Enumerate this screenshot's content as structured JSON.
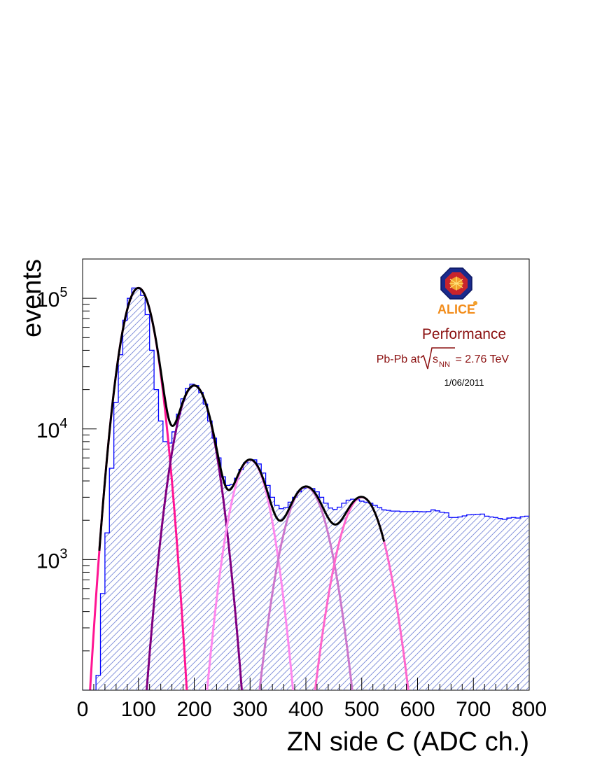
{
  "chart_data": {
    "type": "line",
    "title": "",
    "xlabel": "ZN side C (ADC ch.)",
    "ylabel": "events",
    "xlim": [
      0,
      800
    ],
    "ylim": [
      100,
      200000
    ],
    "yscale": "log",
    "grid": false,
    "x_ticks": [
      "0",
      "100",
      "200",
      "300",
      "400",
      "500",
      "600",
      "700",
      "800"
    ],
    "y_ticks": [
      {
        "base": "10",
        "exp": "3",
        "value": 1000
      },
      {
        "base": "10",
        "exp": "4",
        "value": 10000
      },
      {
        "base": "10",
        "exp": "5",
        "value": 100000
      }
    ],
    "annotations": {
      "logo": "ALICE",
      "performance": "Performance",
      "collision_prefix": "Pb-Pb at",
      "collision_s": "s",
      "collision_sub": "NN",
      "collision_suffix": " = 2.76 TeV",
      "date": "1/06/2011"
    },
    "histogram": {
      "name": "",
      "color": "#0000ff",
      "fill_hatch_color": "#7a88d8",
      "bin_width": 8,
      "x": [
        0,
        8,
        16,
        24,
        32,
        40,
        48,
        56,
        64,
        72,
        80,
        88,
        96,
        104,
        112,
        120,
        128,
        136,
        144,
        152,
        160,
        168,
        176,
        184,
        192,
        200,
        208,
        216,
        224,
        232,
        240,
        248,
        256,
        264,
        272,
        280,
        288,
        296,
        304,
        312,
        320,
        328,
        336,
        344,
        352,
        360,
        368,
        376,
        384,
        392,
        400,
        408,
        416,
        424,
        432,
        440,
        448,
        456,
        464,
        472,
        480,
        488,
        496,
        504,
        512,
        520,
        528,
        536,
        544,
        552,
        560,
        568,
        576,
        584,
        592,
        600,
        608,
        616,
        624,
        632,
        640,
        648,
        656,
        664,
        672,
        680,
        688,
        696,
        704,
        712,
        720,
        728,
        736,
        744,
        752,
        760,
        768,
        776,
        784,
        792
      ],
      "y": [
        100,
        100,
        100,
        130,
        550,
        1600,
        5000,
        16000,
        37000,
        68000,
        100000,
        120000,
        120000,
        105000,
        75000,
        40000,
        20000,
        11500,
        8000,
        7800,
        9500,
        13000,
        17000,
        20500,
        22000,
        21500,
        19000,
        15500,
        11500,
        8500,
        6000,
        4300,
        3700,
        3750,
        4200,
        4900,
        5500,
        5800,
        5800,
        5400,
        4600,
        3700,
        3000,
        2600,
        2450,
        2500,
        2750,
        3000,
        3300,
        3500,
        3550,
        3500,
        3300,
        3000,
        2700,
        2480,
        2420,
        2520,
        2700,
        2850,
        2900,
        2870,
        2800,
        2750,
        2700,
        2600,
        2500,
        2400,
        2380,
        2350,
        2350,
        2330,
        2330,
        2330,
        2340,
        2330,
        2320,
        2330,
        2400,
        2360,
        2300,
        2280,
        2100,
        2100,
        2120,
        2160,
        2200,
        2210,
        2220,
        2230,
        2150,
        2120,
        2100,
        2060,
        2030,
        2080,
        2100,
        2080,
        2130,
        2150
      ]
    },
    "series": [
      {
        "name": "",
        "color": "#ff1493",
        "mu": 100,
        "sigma": 23,
        "amp": 120000
      },
      {
        "name": "",
        "color": "#800080",
        "mu": 200,
        "sigma": 26,
        "amp": 21500
      },
      {
        "name": "",
        "color": "#ff88ee",
        "mu": 300,
        "sigma": 27,
        "amp": 5800
      },
      {
        "name": "",
        "color": "#cc77cc",
        "mu": 400,
        "sigma": 31,
        "amp": 3600
      },
      {
        "name": "",
        "color": "#ff66cc",
        "mu": 500,
        "sigma": 32,
        "amp": 3000
      }
    ],
    "total_fit": {
      "name": "",
      "color": "#000000"
    }
  }
}
